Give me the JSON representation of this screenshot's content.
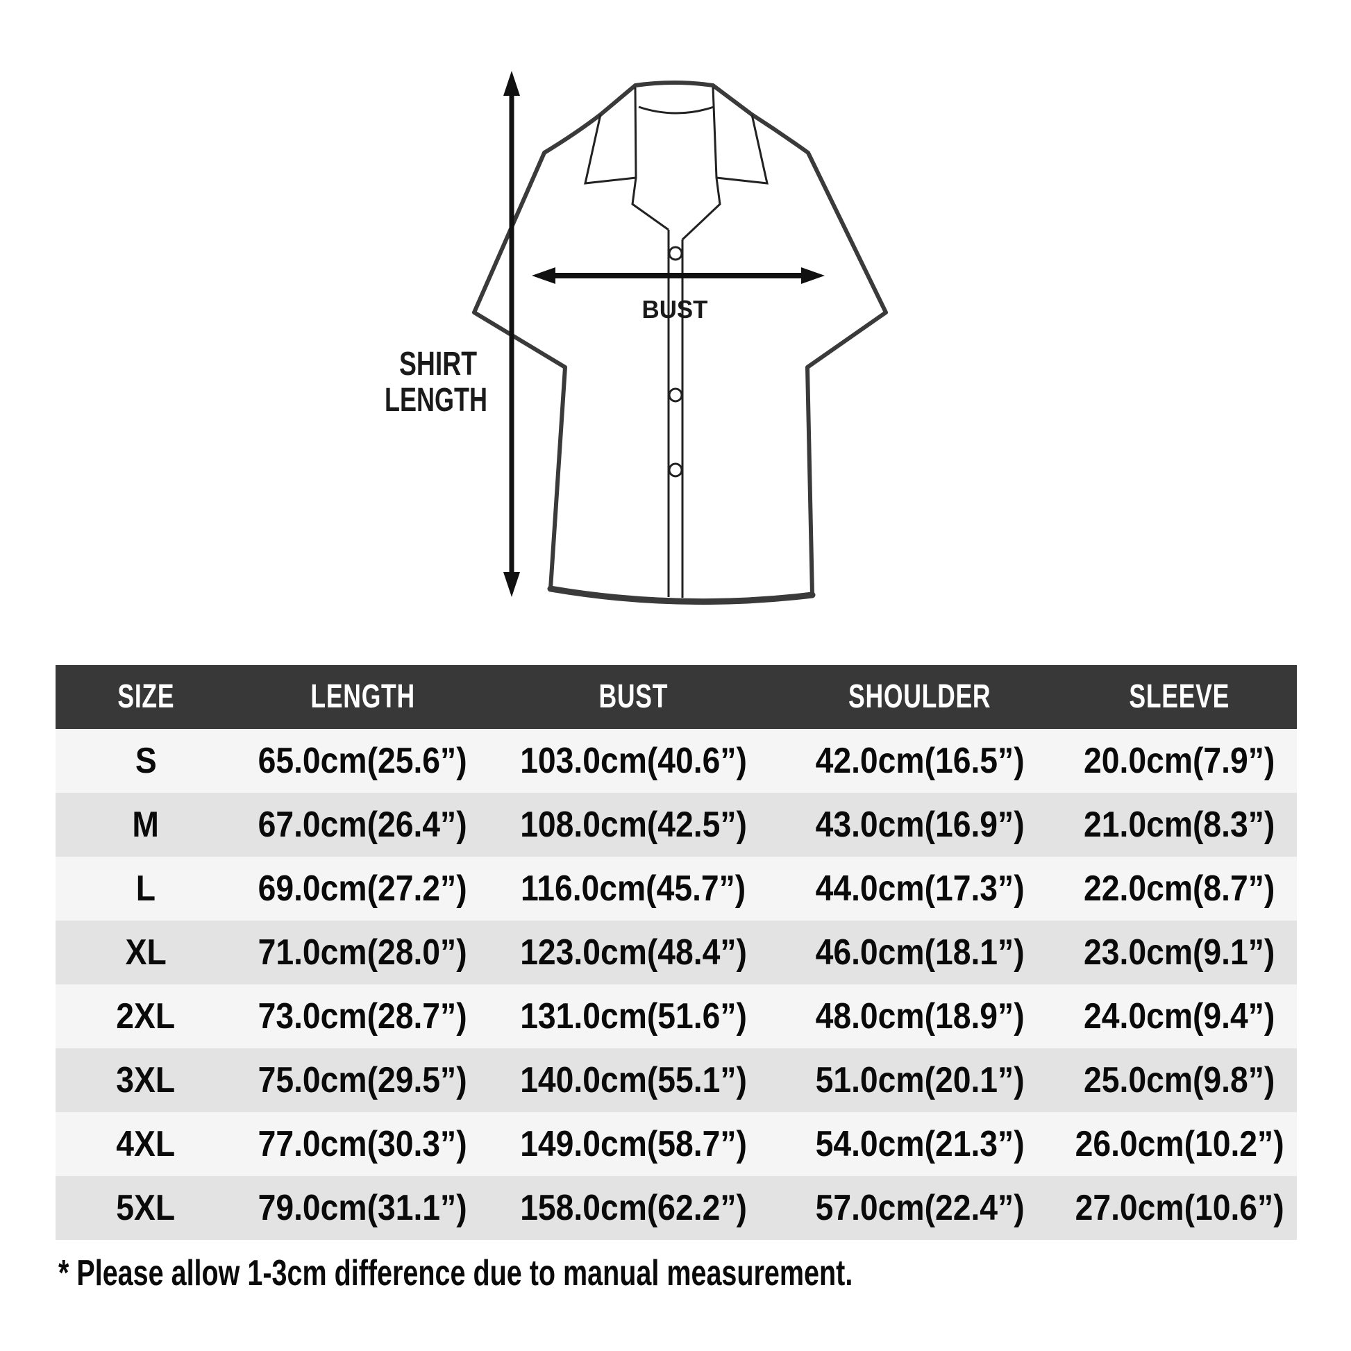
{
  "diagram": {
    "shirt_length_label_line1": "SHIRT",
    "shirt_length_label_line2": "LENGTH",
    "bust_label": "BUST"
  },
  "table": {
    "headers": [
      "SIZE",
      "LENGTH",
      "BUST",
      "SHOULDER",
      "SLEEVE"
    ],
    "rows": [
      {
        "size": "S",
        "length": "65.0cm(25.6”)",
        "bust": "103.0cm(40.6”)",
        "shoulder": "42.0cm(16.5”)",
        "sleeve": "20.0cm(7.9”)"
      },
      {
        "size": "M",
        "length": "67.0cm(26.4”)",
        "bust": "108.0cm(42.5”)",
        "shoulder": "43.0cm(16.9”)",
        "sleeve": "21.0cm(8.3”)"
      },
      {
        "size": "L",
        "length": "69.0cm(27.2”)",
        "bust": "116.0cm(45.7”)",
        "shoulder": "44.0cm(17.3”)",
        "sleeve": "22.0cm(8.7”)"
      },
      {
        "size": "XL",
        "length": "71.0cm(28.0”)",
        "bust": "123.0cm(48.4”)",
        "shoulder": "46.0cm(18.1”)",
        "sleeve": "23.0cm(9.1”)"
      },
      {
        "size": "2XL",
        "length": "73.0cm(28.7”)",
        "bust": "131.0cm(51.6”)",
        "shoulder": "48.0cm(18.9”)",
        "sleeve": "24.0cm(9.4”)"
      },
      {
        "size": "3XL",
        "length": "75.0cm(29.5”)",
        "bust": "140.0cm(55.1”)",
        "shoulder": "51.0cm(20.1”)",
        "sleeve": "25.0cm(9.8”)"
      },
      {
        "size": "4XL",
        "length": "77.0cm(30.3”)",
        "bust": "149.0cm(58.7”)",
        "shoulder": "54.0cm(21.3”)",
        "sleeve": "26.0cm(10.2”)"
      },
      {
        "size": "5XL",
        "length": "79.0cm(31.1”)",
        "bust": "158.0cm(62.2”)",
        "shoulder": "57.0cm(22.4”)",
        "sleeve": "27.0cm(10.6”)"
      }
    ]
  },
  "footnote": "* Please allow 1-3cm difference due to manual measurement.",
  "colors": {
    "header_bg": "#383838",
    "header_text": "#ffffff",
    "row_light": "#f5f5f6",
    "row_dark": "#e3e3e3",
    "cell_text": "#0a0a0a",
    "line_color": "#3a3a3a"
  }
}
